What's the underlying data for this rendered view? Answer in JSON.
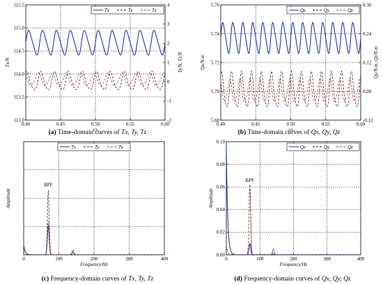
{
  "chart_data": [
    {
      "type": "line",
      "caption_letter": "(a)",
      "caption_text": "Time-domain curves of",
      "caption_vars": "Tx, Ty, Tz",
      "xlabel": "t/s",
      "ylabel_left": "Tx/N",
      "ylabel_right": "Ty/N, Tz/N",
      "xlim": [
        0.4,
        0.6
      ],
      "x_ticks": [
        "0.40",
        "0.45",
        "0.50",
        "0.55",
        "0.60"
      ],
      "ylim_left": [
        113.0,
        115.5
      ],
      "y_ticks_left": [
        "113.0",
        "113.5",
        "114.0",
        "114.5",
        "115.0",
        "115.5"
      ],
      "ylim_right": [
        -2,
        4
      ],
      "y_ticks_right": [
        "-2",
        "-1",
        "0",
        "1",
        "2",
        "3",
        "4"
      ],
      "legend": [
        "Tx",
        "Ty",
        "Tz"
      ],
      "legend_position": "top-right",
      "series": [
        {
          "name": "Tx",
          "axis": "left",
          "color": "#1f2fbf",
          "dash": "solid",
          "mean": 114.68,
          "amp": 0.3,
          "cycles": 10
        },
        {
          "name": "Ty",
          "axis": "right",
          "color": "#222222",
          "dash": "dashed",
          "mean": 0.0,
          "amp": 0.55,
          "cycles": 10
        },
        {
          "name": "Tz",
          "axis": "right",
          "color": "#c0392b",
          "dash": "dashed",
          "mean": 0.1,
          "amp": 0.38,
          "cycles": 10
        }
      ]
    },
    {
      "type": "line",
      "caption_letter": "(b)",
      "caption_text": "Time-domain curves of",
      "caption_vars": "Qx, Qy, Qz",
      "xlabel": "t/s",
      "ylabel_left": "Qx/N.m",
      "ylabel_right": "Qy/N.m, Qz/N.m",
      "xlim": [
        0.4,
        0.6
      ],
      "x_ticks": [
        "0.40",
        "0.45",
        "0.50",
        "0.55",
        "0.60"
      ],
      "ylim_left": [
        5.68,
        5.76
      ],
      "y_ticks_left": [
        "5.68",
        "5.70",
        "5.72",
        "5.74",
        "5.76"
      ],
      "ylim_right": [
        -0.12,
        0.36
      ],
      "y_ticks_right": [
        "-0.12",
        "0.00",
        "0.12",
        "0.24",
        "0.36"
      ],
      "legend": [
        "Qx",
        "Qy",
        "Qz"
      ],
      "legend_position": "top-right",
      "series": [
        {
          "name": "Qx",
          "axis": "left",
          "color": "#1f2fbf",
          "dash": "solid",
          "mean": 5.737,
          "amp": 0.012,
          "cycles": 14
        },
        {
          "name": "Qy",
          "axis": "right",
          "color": "#222222",
          "dash": "dashed",
          "mean": 0.0,
          "amp": 0.085,
          "cycles": 14
        },
        {
          "name": "Qz",
          "axis": "right",
          "color": "#c0392b",
          "dash": "dashed",
          "mean": 0.0,
          "amp": 0.055,
          "cycles": 14
        }
      ]
    },
    {
      "type": "line",
      "caption_letter": "(c)",
      "caption_text": "Frequency-domain curves of",
      "caption_vars": "Tx, Ty, Tz",
      "xlabel": "Frequency/Hz",
      "ylabel_left": "Amplitude",
      "xlim": [
        0,
        400
      ],
      "x_ticks": [
        "0",
        "100",
        "200",
        "300",
        "400"
      ],
      "ylim_left": [
        0,
        1.0
      ],
      "y_ticks_left": [],
      "annotation": "BPF",
      "annotation_x": 70,
      "annotation_y": 0.58,
      "legend": [
        "Tx",
        "Ty",
        "Tz"
      ],
      "legend_position": "top-center",
      "series": [
        {
          "name": "Tx",
          "color": "#1f2fbf",
          "dash": "solid",
          "peak_x": 70,
          "peak": 0.26,
          "dc": 0.08
        },
        {
          "name": "Ty",
          "color": "#222222",
          "dash": "dashed",
          "peak_x": 70,
          "peak": 0.57,
          "dc": 0.1
        },
        {
          "name": "Tz",
          "color": "#c0392b",
          "dash": "dashed",
          "peak_x": 70,
          "peak": 0.3,
          "dc": 0.1
        }
      ]
    },
    {
      "type": "line",
      "caption_letter": "(d)",
      "caption_text": "Frequency-domain curves of",
      "caption_vars": "Qx, Qy, Qz",
      "xlabel": "Frequency/Hz",
      "ylabel_left": "Amplitude",
      "xlim": [
        0,
        400
      ],
      "x_ticks": [
        "0",
        "100",
        "200",
        "300",
        "400"
      ],
      "ylim_left": [
        0,
        0.1
      ],
      "y_ticks_left": [
        "0.00",
        "0.02",
        "0.04",
        "0.06",
        "0.08",
        "0.10"
      ],
      "annotation": "BPF",
      "annotation_x": 70,
      "annotation_y": 0.062,
      "legend": [
        "Qx",
        "Qy",
        "Qz"
      ],
      "legend_position": "top-right",
      "series": [
        {
          "name": "Qx",
          "color": "#1f2fbf",
          "dash": "solid",
          "peak_x": 70,
          "peak": 0.01,
          "dc": 0.097
        },
        {
          "name": "Qy",
          "color": "#222222",
          "dash": "dashed",
          "peak_x": 70,
          "peak": 0.062,
          "dc": 0.008
        },
        {
          "name": "Qz",
          "color": "#c0392b",
          "dash": "dashed",
          "peak_x": 70,
          "peak": 0.058,
          "dc": 0.008
        }
      ]
    }
  ]
}
